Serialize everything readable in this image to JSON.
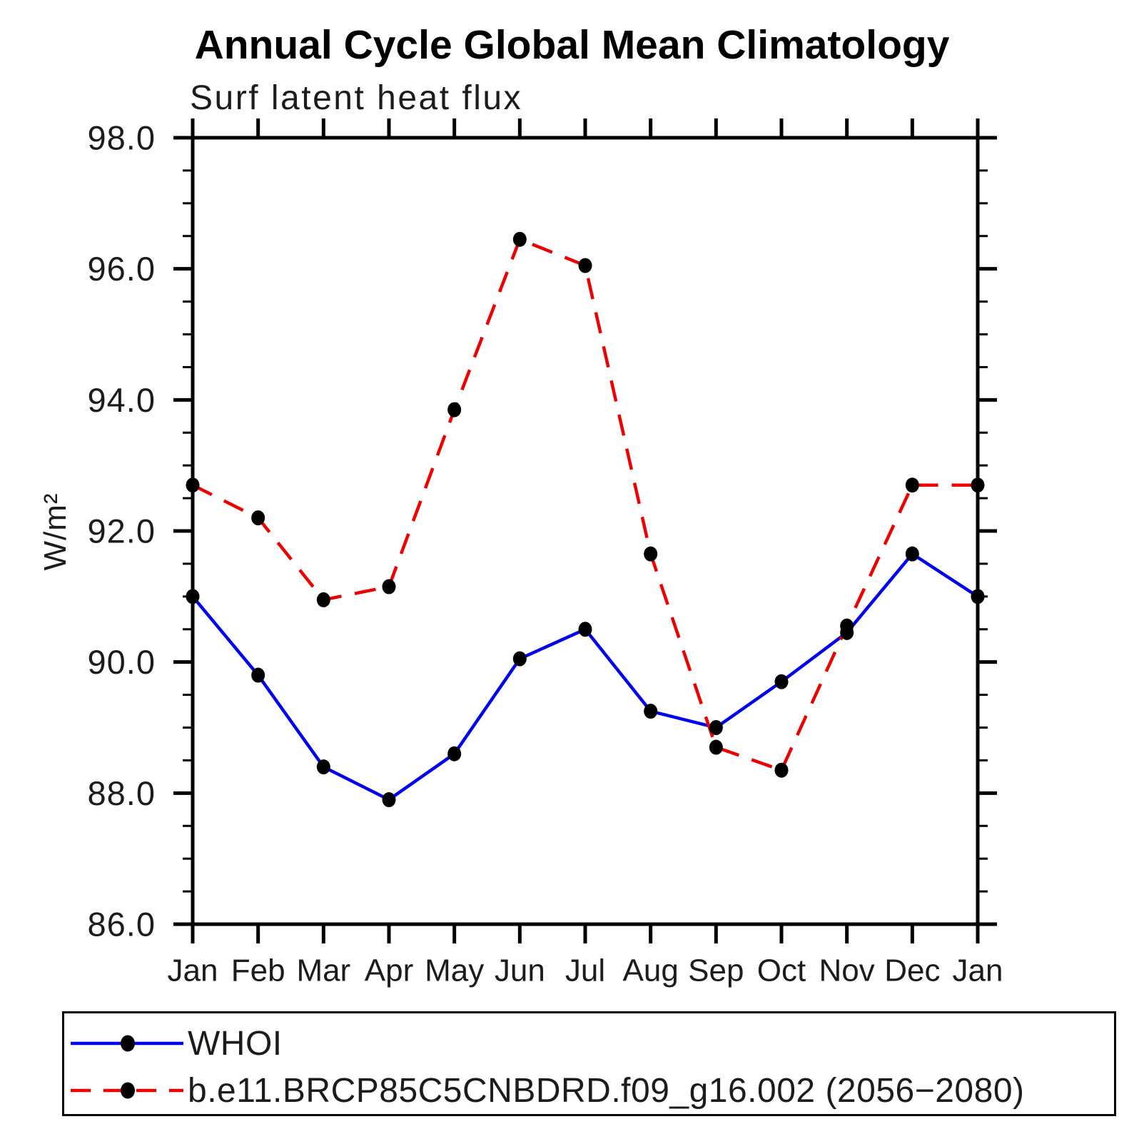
{
  "chart_data": {
    "type": "line",
    "title": "Annual Cycle Global Mean Climatology",
    "subtitle": "Surf latent heat flux",
    "ylabel": "W/m²",
    "xlabel": "",
    "categories": [
      "Jan",
      "Feb",
      "Mar",
      "Apr",
      "May",
      "Jun",
      "Jul",
      "Aug",
      "Sep",
      "Oct",
      "Nov",
      "Dec",
      "Jan"
    ],
    "ylim": [
      86.0,
      98.0
    ],
    "y_major_ticks": [
      86.0,
      88.0,
      90.0,
      92.0,
      94.0,
      96.0,
      98.0
    ],
    "y_tick_labels": [
      "86.0",
      "88.0",
      "90.0",
      "92.0",
      "94.0",
      "96.0",
      "98.0"
    ],
    "y_minor_step": 0.5,
    "grid": false,
    "legend_position": "bottom",
    "marker_color": "#000000",
    "axis_color": "#000000",
    "series": [
      {
        "name": "WHOI",
        "color": "#0000ee",
        "line_style": "solid",
        "marker": "circle",
        "values": [
          91.0,
          89.8,
          88.4,
          87.9,
          88.6,
          90.05,
          90.5,
          89.25,
          89.0,
          89.7,
          90.45,
          91.65,
          91.0
        ]
      },
      {
        "name": "b.e11.BRCP85C5CNBDRD.f09_g16.002 (2056−2080)",
        "color": "#ee0000",
        "line_style": "dashed",
        "marker": "circle",
        "values": [
          92.7,
          92.2,
          90.95,
          91.15,
          93.85,
          96.45,
          96.05,
          91.65,
          88.7,
          88.35,
          90.55,
          92.7,
          92.7
        ]
      }
    ]
  }
}
